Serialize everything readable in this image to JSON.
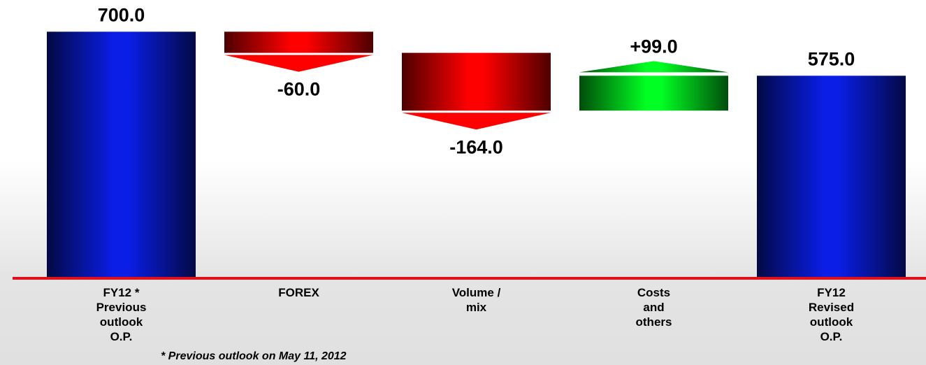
{
  "chart_data": {
    "type": "waterfall",
    "categories": [
      "FY12  *\nPrevious\noutlook\nO.P.",
      "FOREX",
      "Volume /\nmix",
      "Costs\nand\nothers",
      "FY12\nRevised\noutlook\nO.P."
    ],
    "values": [
      700,
      -60,
      -164,
      99,
      575
    ],
    "value_labels": [
      "700.0",
      "-60.0",
      "-164.0",
      "+99.0",
      "575.0"
    ],
    "measure": [
      "absolute",
      "relative",
      "relative",
      "relative",
      "total"
    ],
    "colors": {
      "total": "#0a1ee6",
      "decrease": "#ff0000",
      "increase": "#00ff22"
    },
    "ylim": [
      0,
      790
    ],
    "note": "* Previous outlook on May 11, 2012"
  }
}
